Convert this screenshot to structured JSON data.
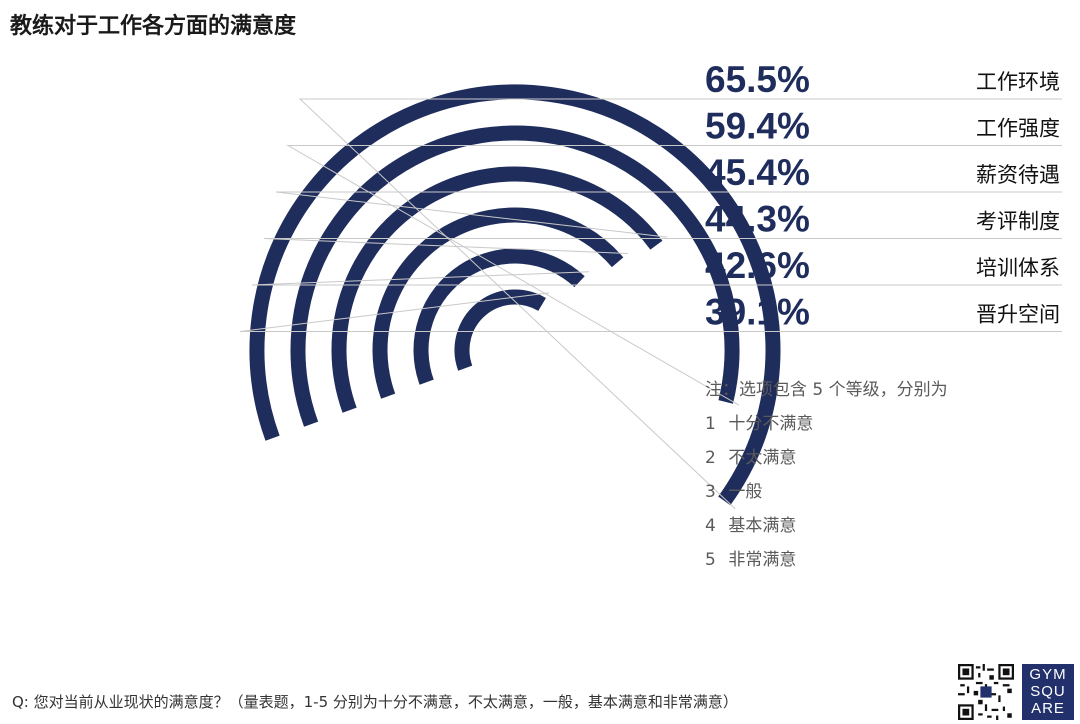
{
  "chart_data": {
    "type": "radial bar",
    "title": "教练对于工作各方面的满意度",
    "categories": [
      "工作环境",
      "工作强度",
      "薪资待遇",
      "考评制度",
      "培训体系",
      "晋升空间"
    ],
    "values": [
      65.5,
      59.4,
      45.4,
      44.3,
      42.6,
      39.1
    ],
    "value_labels": [
      "65.5%",
      "59.4%",
      "45.4%",
      "44.3%",
      "42.6%",
      "39.1%"
    ],
    "unit": "%",
    "bar_color": "#1f2d5c"
  },
  "notes": {
    "heading": "注：选项包含 5 个等级，分别为",
    "items": [
      {
        "num": "1",
        "text": "十分不满意"
      },
      {
        "num": "2",
        "text": "不太满意"
      },
      {
        "num": "3",
        "text": "一般"
      },
      {
        "num": "4",
        "text": "基本满意"
      },
      {
        "num": "5",
        "text": "非常满意"
      }
    ]
  },
  "question": "Q: 您对当前从业现状的满意度？（量表题，1-5 分别为十分不满意，不太满意，一般，基本满意和非常满意）",
  "logo": {
    "lines": [
      "GYM",
      "SQU",
      "ARE"
    ]
  }
}
